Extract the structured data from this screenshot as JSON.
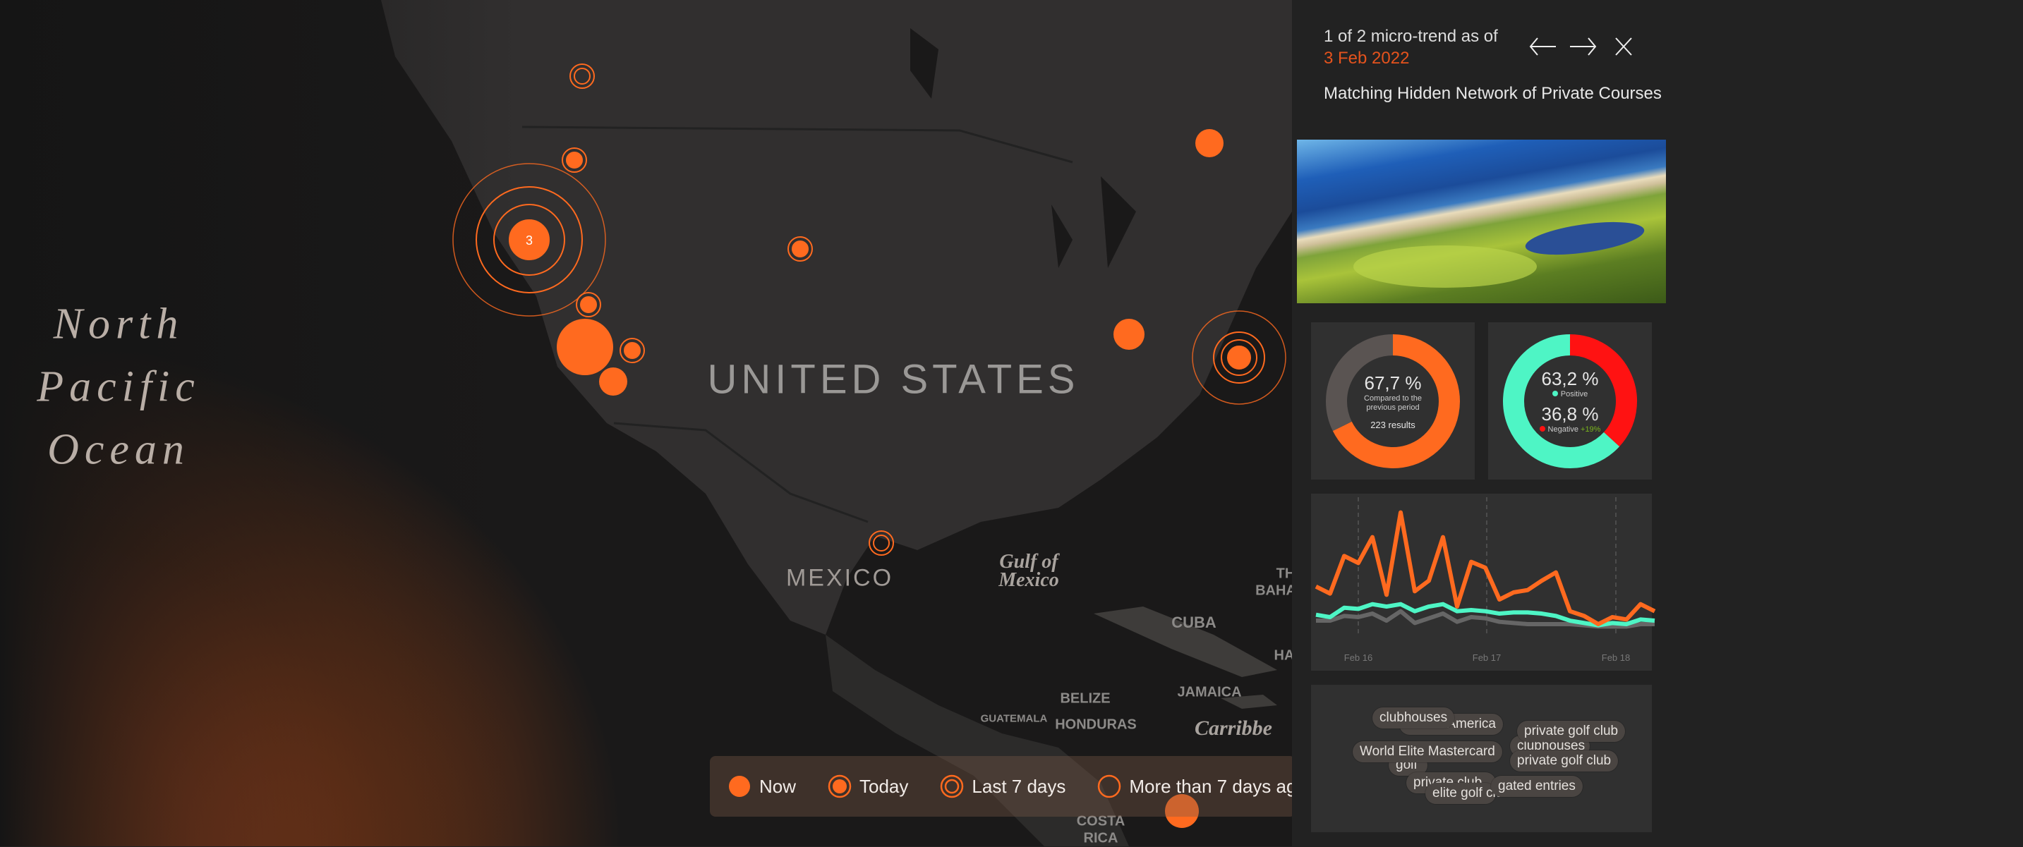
{
  "map": {
    "ocean_label": [
      "North",
      "Pacific",
      "Ocean"
    ],
    "country_labels": {
      "us": "UNITED STATES",
      "mexico": "MEXICO",
      "cuba": "CUBA",
      "jamaica": "JAMAICA",
      "guatemala": "GUATEMALA",
      "belize": "BELIZE",
      "honduras": "HONDURAS",
      "costa": "COSTA",
      "rica": "RICA",
      "th": "TH",
      "baha": "BAHA",
      "ha": "HA"
    },
    "gulf_label": [
      "Gulf of",
      "Mexico"
    ],
    "sea_label": "Carribbe",
    "cluster_count": "3",
    "accent": "#ff6a1f"
  },
  "legend": {
    "items": [
      {
        "label": "Now",
        "icon": "filled-circle"
      },
      {
        "label": "Today",
        "icon": "ring-with-dot"
      },
      {
        "label": "Last 7 days",
        "icon": "double-ring"
      },
      {
        "label": "More than 7 days ago",
        "icon": "ring"
      }
    ]
  },
  "panel": {
    "counter": "1 of 2 micro-trend as of",
    "date": "3 Feb 2022",
    "title": "Matching Hidden Network of Private Courses",
    "icons": {
      "prev": "arrow-left-icon",
      "next": "arrow-right-icon",
      "close": "close-icon"
    },
    "volume": {
      "percent": "67,7 %",
      "value": 67.7,
      "caption": "Compared to the previous period",
      "results": "223 results",
      "color": "#ff6a1f",
      "rest_color": "#5a5452"
    },
    "sentiment": {
      "positive_percent": "63,2 %",
      "positive_value": 63.2,
      "positive_label": "Positive",
      "negative_percent": "36,8 %",
      "negative_value": 36.8,
      "negative_label": "Negative",
      "negative_change": "+19%",
      "positive_color": "#4ef5c5",
      "negative_color": "#ff1212",
      "change_color": "#7ab51d"
    },
    "tags": [
      "America",
      "clubhouses",
      "clubhouses",
      "private golf club",
      "golf",
      "World Elite Mastercard",
      "private golf club",
      "private club",
      "elite golf club",
      "gated entries"
    ]
  },
  "chart_data": {
    "type": "line",
    "x_tick_labels": [
      "Feb 16",
      "Feb 17",
      "Feb 18"
    ],
    "x_tick_index": [
      3,
      12.1,
      21.25
    ],
    "grid": "vertical dashed at ticks",
    "series": [
      {
        "color": "#ff6a1f",
        "values": [
          48,
          42,
          74,
          68,
          90,
          41,
          111,
          44,
          53,
          90,
          31,
          69,
          64,
          37,
          43,
          45,
          53,
          60,
          27,
          23,
          16,
          22,
          20,
          33,
          27
        ]
      },
      {
        "color": "#4ef5c5",
        "values": [
          24,
          22,
          30,
          29,
          33,
          31,
          33,
          27,
          31,
          33,
          27,
          28,
          27,
          25,
          26,
          26,
          25,
          23,
          19,
          17,
          15,
          17,
          16,
          20,
          19
        ]
      },
      {
        "color": "#666666",
        "values": [
          19,
          19,
          23,
          22,
          25,
          19,
          27,
          17,
          21,
          25,
          18,
          22,
          21,
          18,
          17,
          16,
          16,
          16,
          16,
          15,
          14,
          14,
          14,
          16,
          16
        ]
      }
    ]
  }
}
